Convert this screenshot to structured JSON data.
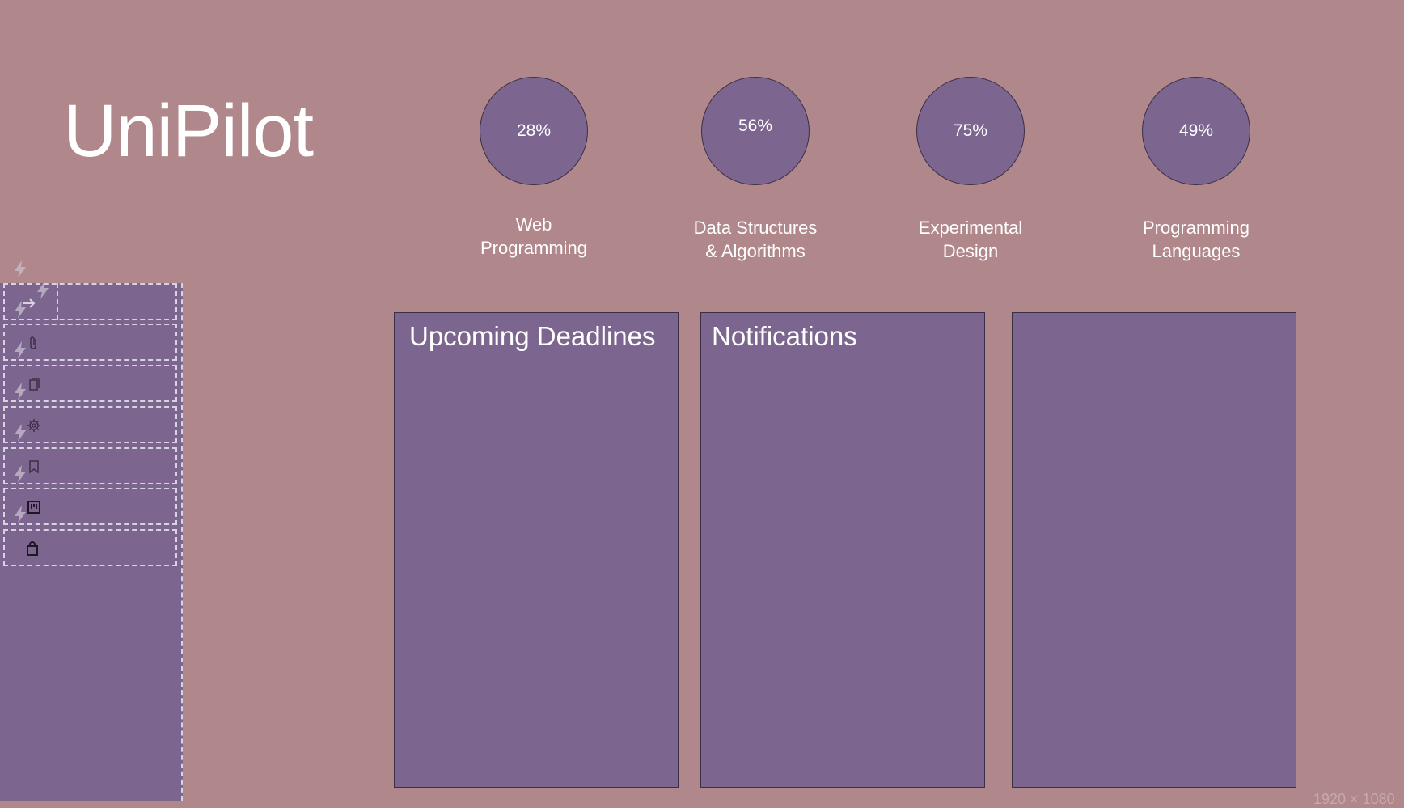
{
  "app": {
    "title": "UniPilot"
  },
  "courses": [
    {
      "progress_text": "28%",
      "progress": 0.28,
      "name": "Web\nProgramming"
    },
    {
      "progress_text": "56%",
      "progress": 0.56,
      "name": "Data Structures\n& Algorithms"
    },
    {
      "progress_text": "75%",
      "progress": 0.75,
      "name": "Experimental\nDesign"
    },
    {
      "progress_text": "49%",
      "progress": 0.49,
      "name": "Programming\nLanguages"
    }
  ],
  "panels": {
    "deadlines": {
      "title": "Upcoming Deadlines"
    },
    "notifications": {
      "title": "Notifications"
    },
    "third": {
      "title": ""
    }
  },
  "sidebar": {
    "items": [
      {
        "icon": "logout-arrow-icon"
      },
      {
        "icon": "paperclip-icon"
      },
      {
        "icon": "copy-icon"
      },
      {
        "icon": "gear-icon"
      },
      {
        "icon": "bookmark-icon"
      },
      {
        "icon": "board-icon"
      },
      {
        "icon": "shopping-bag-icon"
      }
    ]
  },
  "canvas": {
    "size_label": "1920 × 1080"
  },
  "colors": {
    "background": "#b0878a",
    "accent_purple": "#7c668f",
    "outline": "#3b2f45",
    "guide_dashes": "#d8d3e0"
  }
}
